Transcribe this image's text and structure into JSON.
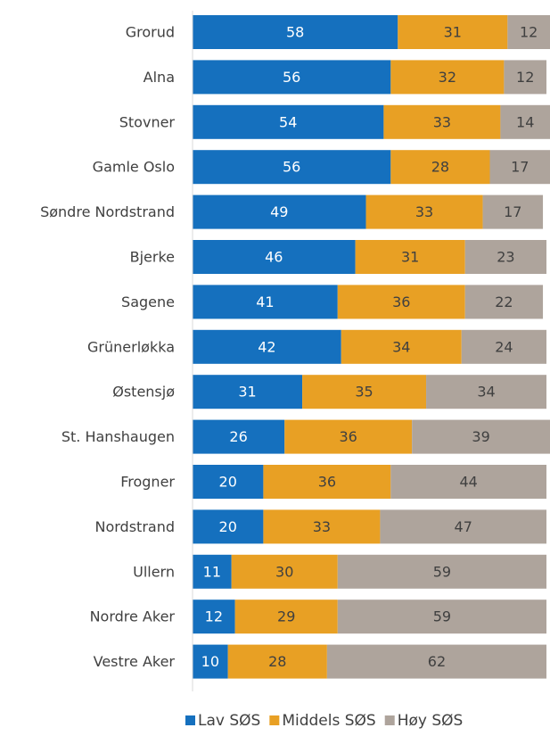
{
  "chart_data": {
    "type": "stacked_bar_horizontal",
    "categories": [
      "Grorud",
      "Alna",
      "Stovner",
      "Gamle Oslo",
      "Søndre Nordstrand",
      "Bjerke",
      "Sagene",
      "Grünerløkka",
      "Østensjø",
      "St. Hanshaugen",
      "Frogner",
      "Nordstrand",
      "Ullern",
      "Nordre Aker",
      "Vestre Aker"
    ],
    "series": [
      {
        "name": "Lav SØS",
        "color": "#1570be",
        "values": [
          58,
          56,
          54,
          56,
          49,
          46,
          41,
          42,
          31,
          26,
          20,
          20,
          11,
          12,
          10
        ]
      },
      {
        "name": "Middels SØS",
        "color": "#e8a024",
        "values": [
          31,
          32,
          33,
          28,
          33,
          31,
          36,
          34,
          35,
          36,
          36,
          33,
          30,
          29,
          28
        ]
      },
      {
        "name": "Høy SØS",
        "color": "#aea49c",
        "values": [
          12,
          12,
          14,
          17,
          17,
          23,
          22,
          24,
          34,
          39,
          44,
          47,
          59,
          59,
          62
        ]
      }
    ],
    "legend": "bottom"
  }
}
